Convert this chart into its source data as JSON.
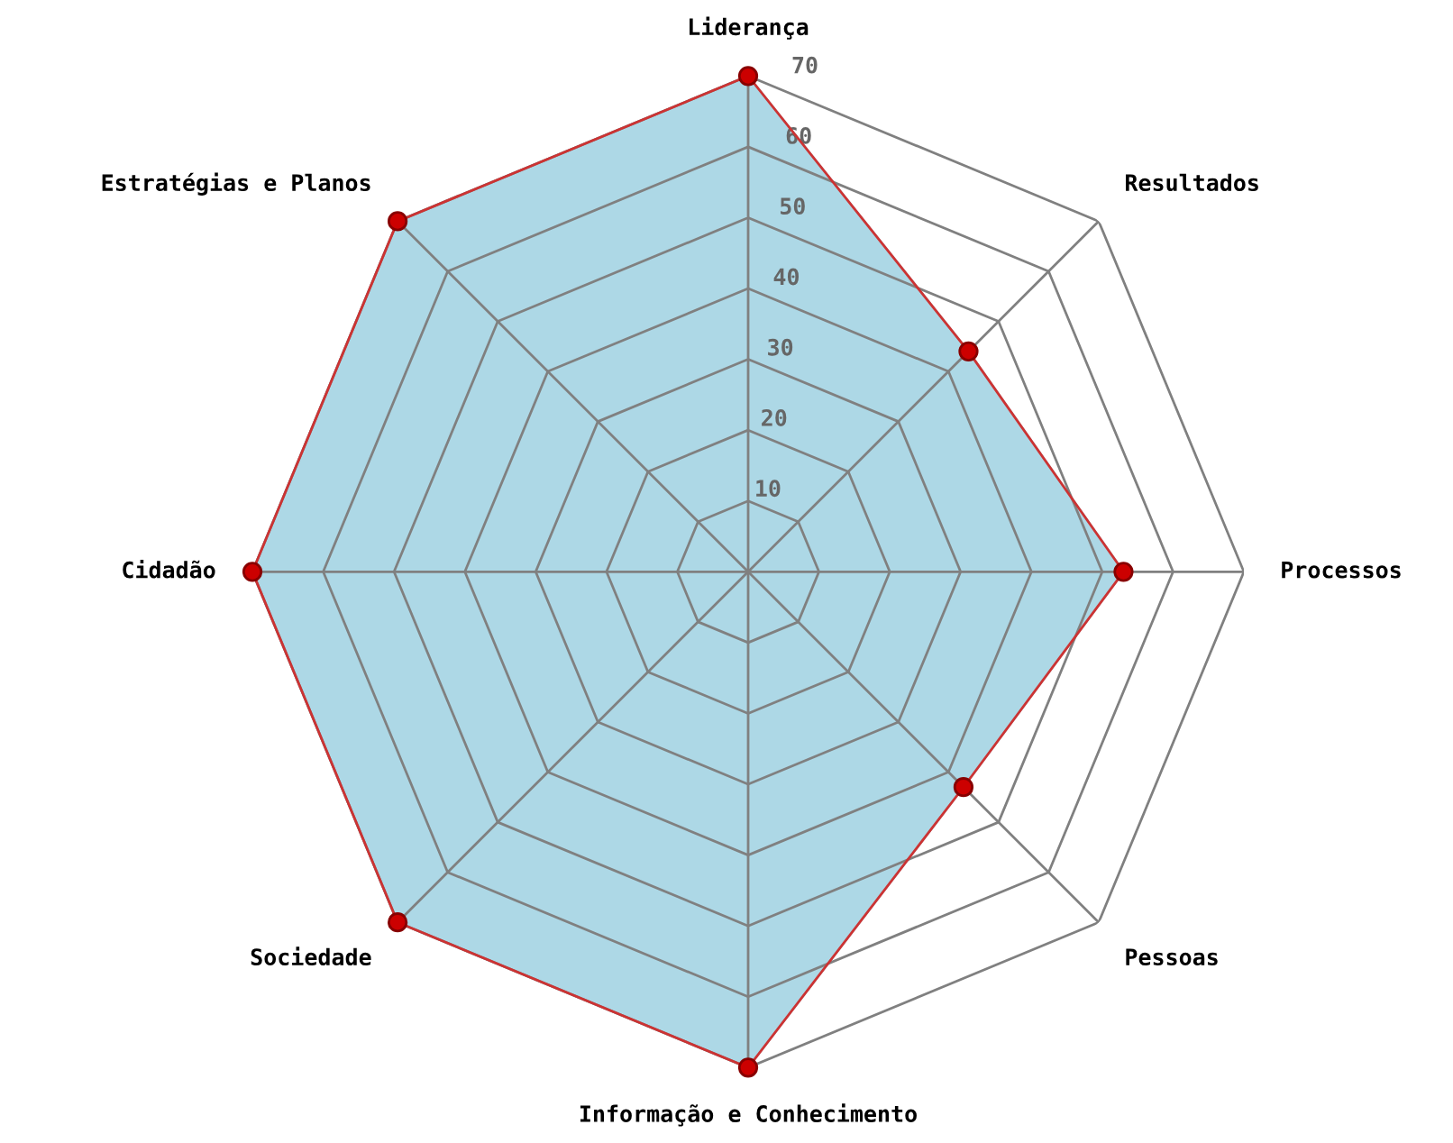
{
  "chart_data": {
    "type": "radar",
    "categories": [
      "Liderança",
      "Resultados",
      "Processos",
      "Pessoas",
      "Informação e Conhecimento",
      "Sociedade",
      "Cidadão",
      "Estratégias e Planos"
    ],
    "series": [
      {
        "color": "#add8e6",
        "values": [
          70,
          44,
          53,
          43,
          70,
          70,
          70,
          70
        ]
      }
    ],
    "ylim": [
      0,
      70
    ],
    "yticks": [
      10,
      20,
      30,
      40,
      50,
      60,
      70
    ],
    "grid": true,
    "marker": "circle"
  }
}
